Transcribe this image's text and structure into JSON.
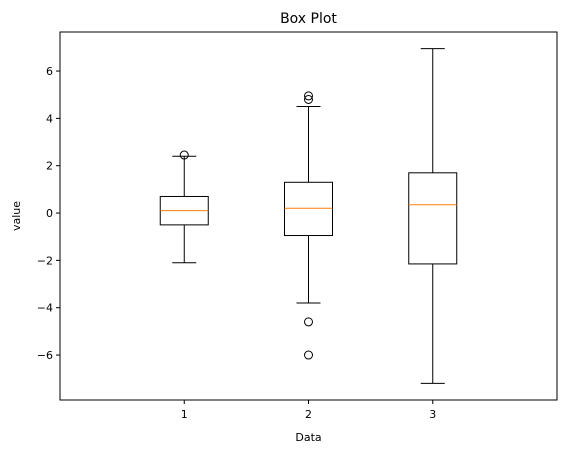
{
  "chart_data": {
    "type": "box",
    "title": "Box Plot",
    "xlabel": "Data",
    "ylabel": "value",
    "ylim": [
      -7.9,
      7.65
    ],
    "yticks": [
      -6,
      -4,
      -2,
      0,
      2,
      4,
      6
    ],
    "categories": [
      "1",
      "2",
      "3"
    ],
    "series": [
      {
        "category": "1",
        "q1": -0.5,
        "median": 0.1,
        "q3": 0.7,
        "whisker_low": -2.1,
        "whisker_high": 2.4,
        "outliers": [
          2.45
        ]
      },
      {
        "category": "2",
        "q1": -0.95,
        "median": 0.2,
        "q3": 1.3,
        "whisker_low": -3.8,
        "whisker_high": 4.5,
        "outliers": [
          4.95,
          4.8,
          -4.6,
          -6.0
        ]
      },
      {
        "category": "3",
        "q1": -2.15,
        "median": 0.35,
        "q3": 1.7,
        "whisker_low": -7.2,
        "whisker_high": 6.95,
        "outliers": []
      }
    ],
    "colors": {
      "box": "#000000",
      "median": "#ff7f0e",
      "outlier": "#000000"
    },
    "grid": false
  }
}
